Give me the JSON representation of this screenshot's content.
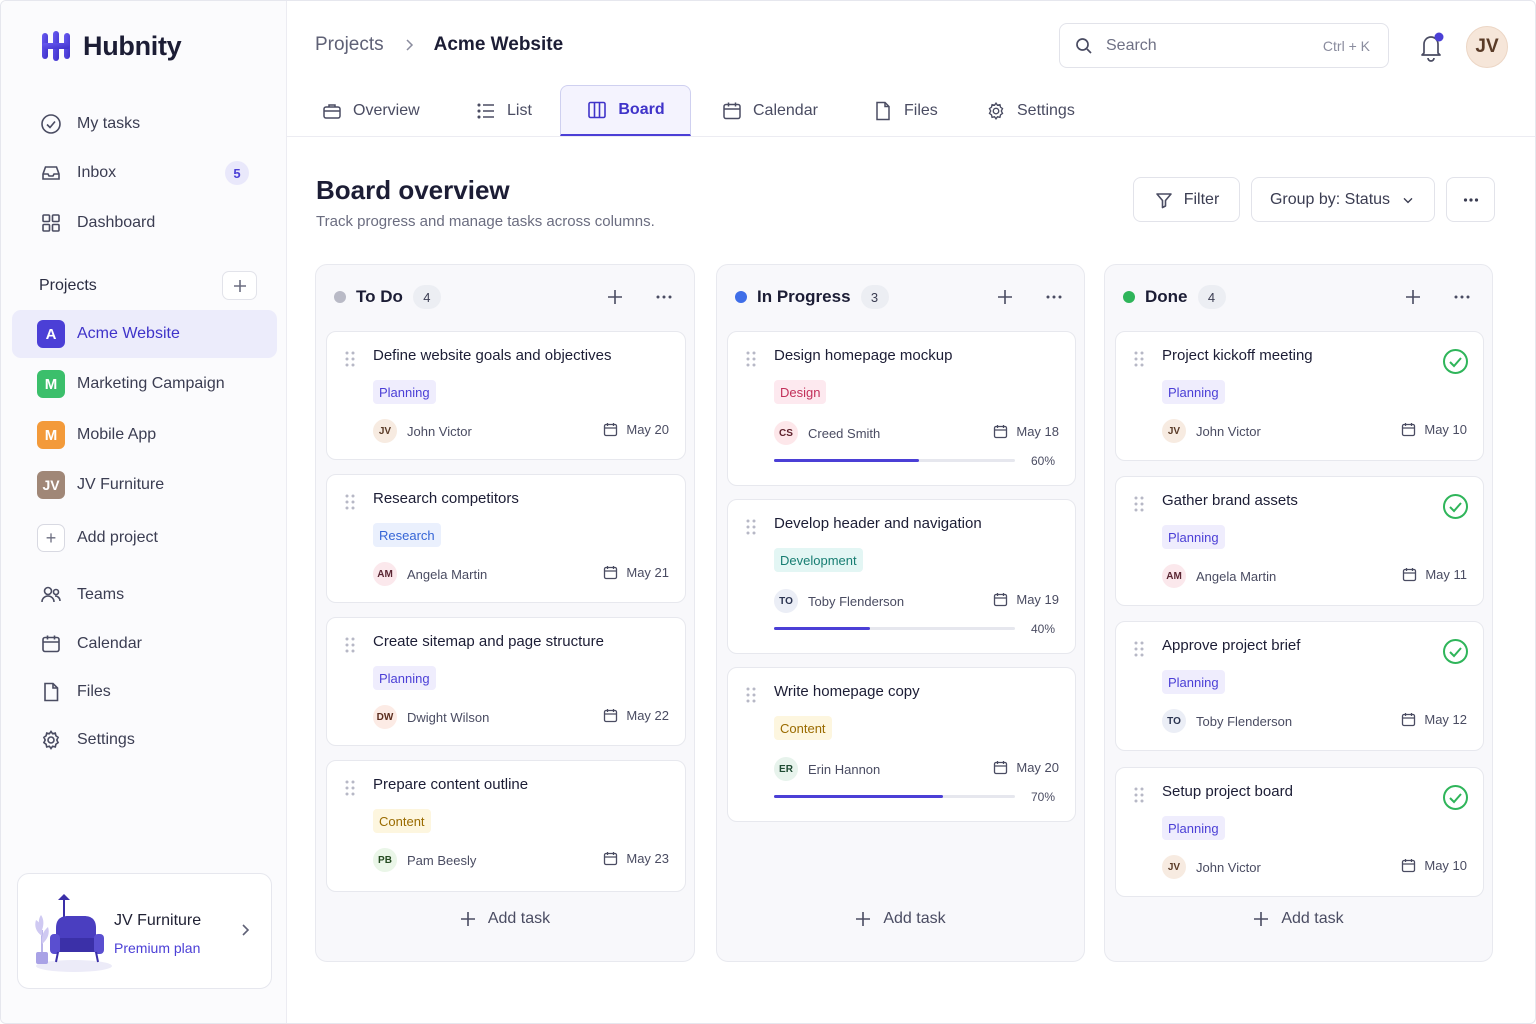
{
  "app": {
    "name": "Hubnity"
  },
  "sidebar": {
    "nav": [
      {
        "label": "My tasks",
        "icon": "check-circle-icon"
      },
      {
        "label": "Inbox",
        "icon": "inbox-icon",
        "badge": "5"
      },
      {
        "label": "Dashboard",
        "icon": "grid-icon"
      }
    ],
    "projects_title": "Projects",
    "projects": [
      {
        "initial": "A",
        "label": "Acme Website",
        "color": "#4b3fd6",
        "active": true
      },
      {
        "initial": "M",
        "label": "Marketing Campaign",
        "color": "#3bbf6b"
      },
      {
        "initial": "M",
        "label": "Mobile App",
        "color": "#f39a3a"
      },
      {
        "initial": "JV",
        "label": "JV Furniture",
        "color": "#a08777"
      }
    ],
    "add_project": "Add project",
    "nav2": [
      {
        "label": "Teams",
        "icon": "users-icon"
      },
      {
        "label": "Calendar",
        "icon": "calendar-icon"
      },
      {
        "label": "Files",
        "icon": "file-icon"
      },
      {
        "label": "Settings",
        "icon": "gear-icon"
      }
    ],
    "workspace": {
      "name": "JV Furniture",
      "plan": "Premium plan"
    }
  },
  "header": {
    "breadcrumb_parent": "Projects",
    "breadcrumb_current": "Acme Website",
    "search_placeholder": "Search",
    "search_shortcut": "Ctrl + K",
    "user_initials": "JV"
  },
  "tabs": [
    {
      "label": "Overview",
      "icon": "briefcase-icon"
    },
    {
      "label": "List",
      "icon": "list-icon"
    },
    {
      "label": "Board",
      "icon": "board-icon",
      "active": true
    },
    {
      "label": "Calendar",
      "icon": "calendar-icon"
    },
    {
      "label": "Files",
      "icon": "file-icon"
    },
    {
      "label": "Settings",
      "icon": "gear-icon"
    }
  ],
  "main": {
    "title": "Board overview",
    "subtitle": "Track progress and manage tasks across columns.",
    "filter_label": "Filter",
    "group_label": "Group by: Status"
  },
  "columns": [
    {
      "name": "To Do",
      "count": "4",
      "dot_color": "#b9bac6",
      "add_task": "Add task",
      "cards": [
        {
          "title": "Define website goals and objectives",
          "tag": "Planning",
          "assignee_initials": "JV",
          "assignee": "John Victor",
          "due": "May 20"
        },
        {
          "title": "Research competitors",
          "tag": "Research",
          "assignee_initials": "AM",
          "assignee": "Angela Martin",
          "due": "May 21"
        },
        {
          "title": "Create sitemap and page structure",
          "tag": "Planning",
          "assignee_initials": "DW",
          "assignee": "Dwight Wilson",
          "due": "May 22"
        },
        {
          "title": "Prepare content outline",
          "tag": "Content",
          "assignee_initials": "PB",
          "assignee": "Pam Beesly",
          "due": "May 23"
        }
      ]
    },
    {
      "name": "In Progress",
      "count": "3",
      "dot_color": "#3f6ee8",
      "add_task": "Add task",
      "cards": [
        {
          "title": "Design homepage mockup",
          "tag": "Design",
          "assignee_initials": "CS",
          "assignee": "Creed Smith",
          "due": "May 18",
          "progress": 60,
          "progress_label": "60%"
        },
        {
          "title": "Develop header and navigation",
          "tag": "Development",
          "assignee_initials": "TO",
          "assignee": "Toby Flenderson",
          "due": "May 19",
          "progress": 40,
          "progress_label": "40%"
        },
        {
          "title": "Write homepage copy",
          "tag": "Content",
          "assignee_initials": "ER",
          "assignee": "Erin Hannon",
          "due": "May 20",
          "progress": 70,
          "progress_label": "70%"
        }
      ]
    },
    {
      "name": "Done",
      "count": "4",
      "dot_color": "#2fb55a",
      "add_task": "Add task",
      "cards": [
        {
          "title": "Project kickoff meeting",
          "tag": "Planning",
          "assignee_initials": "JV",
          "assignee": "John Victor",
          "due": "May 10"
        },
        {
          "title": "Gather brand assets",
          "tag": "Planning",
          "assignee_initials": "AM",
          "assignee": "Angela Martin",
          "due": "May 11"
        },
        {
          "title": "Approve project brief",
          "tag": "Planning",
          "assignee_initials": "TO",
          "assignee": "Toby Flenderson",
          "due": "May 12"
        },
        {
          "title": "Setup project board",
          "tag": "Planning",
          "assignee_initials": "JV",
          "assignee": "John Victor",
          "due": "May 10"
        }
      ]
    }
  ],
  "tag_colors": {
    "Planning": {
      "bg": "#efedfd",
      "fg": "#4b3fd6"
    },
    "Research": {
      "bg": "#eaf0fd",
      "fg": "#3565d6"
    },
    "Content": {
      "bg": "#fdf6df",
      "fg": "#9a6b00"
    },
    "Design": {
      "bg": "#fde9ef",
      "fg": "#c2305a"
    },
    "Development": {
      "bg": "#e3f6f4",
      "fg": "#177d72"
    }
  },
  "avatar_colors": {
    "JV": {
      "bg": "#f7ebe1",
      "fg": "#5a3b27"
    },
    "AM": {
      "bg": "#fbe8ec",
      "fg": "#5a2633"
    },
    "DW": {
      "bg": "#fcebe5",
      "fg": "#5a2d1e"
    },
    "PB": {
      "bg": "#eaf6e8",
      "fg": "#244a20"
    },
    "CS": {
      "bg": "#fde7ea",
      "fg": "#5c1f2a"
    },
    "TO": {
      "bg": "#ebeef6",
      "fg": "#2a3350"
    },
    "ER": {
      "bg": "#e7f3ec",
      "fg": "#1e4a32"
    }
  }
}
